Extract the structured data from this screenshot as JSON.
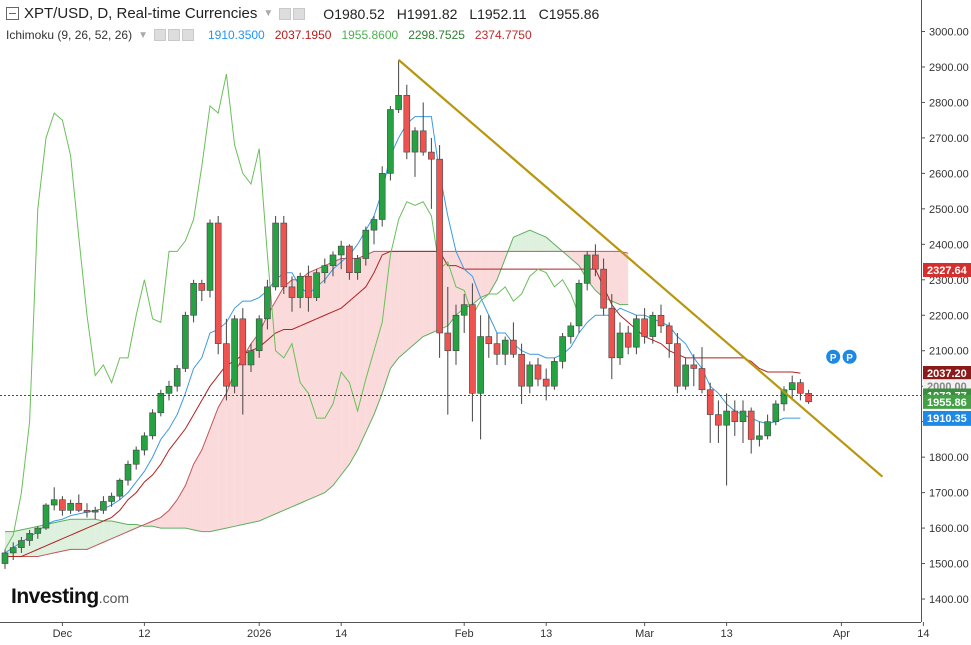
{
  "header": {
    "title": "XPT/USD, D, Real-time Currencies",
    "open_label": "O",
    "open": "1980.52",
    "high_label": "H",
    "high": "1991.82",
    "low_label": "L",
    "low": "1952.11",
    "close_label": "C",
    "close": "1955.86"
  },
  "indicator": {
    "label": "Ichimoku (9, 26, 52, 26)",
    "values": [
      "1910.3500",
      "2037.1950",
      "1955.8600",
      "2298.7525",
      "2374.7750"
    ],
    "colors": [
      "#2196f3",
      "#b71c1c",
      "#4caf50",
      "#2e7d32",
      "#c62828"
    ]
  },
  "brand": {
    "name": "Investing",
    "suffix": ".com"
  },
  "colors": {
    "up": "#26a242",
    "down": "#ef5350",
    "tenkan": "#3d9ae0",
    "kijun": "#b22222",
    "chikou": "#6abf5a",
    "trendline": "#b8960f",
    "cloud_bull": "#d8efd8",
    "cloud_bear": "#f9d3d3"
  },
  "chart_data": {
    "type": "candlestick",
    "symbol": "XPT/USD",
    "timeframe": "D",
    "ylim": [
      1380,
      3050
    ],
    "yticks": [
      "3000.00",
      "2900.00",
      "2800.00",
      "2700.00",
      "2600.00",
      "2500.00",
      "2400.00",
      "2300.00",
      "2200.00",
      "2100.00",
      "2000.00",
      "1900.00",
      "1800.00",
      "1700.00",
      "1600.00",
      "1500.00",
      "1400.00"
    ],
    "xticks": [
      {
        "label": "Dec",
        "i": 7
      },
      {
        "label": "12",
        "i": 17
      },
      {
        "label": "2026",
        "i": 31
      },
      {
        "label": "14",
        "i": 41
      },
      {
        "label": "Feb",
        "i": 56
      },
      {
        "label": "13",
        "i": 66
      },
      {
        "label": "Mar",
        "i": 78
      },
      {
        "label": "13",
        "i": 88
      },
      {
        "label": "Apr",
        "i": 102
      },
      {
        "label": "14",
        "i": 112
      }
    ],
    "candles": [
      [
        1500,
        1540,
        1485,
        1530
      ],
      [
        1530,
        1560,
        1510,
        1545
      ],
      [
        1545,
        1575,
        1530,
        1565
      ],
      [
        1565,
        1595,
        1550,
        1585
      ],
      [
        1585,
        1605,
        1570,
        1600
      ],
      [
        1600,
        1670,
        1595,
        1665
      ],
      [
        1665,
        1715,
        1650,
        1680
      ],
      [
        1680,
        1690,
        1635,
        1650
      ],
      [
        1650,
        1680,
        1640,
        1670
      ],
      [
        1670,
        1695,
        1645,
        1650
      ],
      [
        1650,
        1670,
        1630,
        1645
      ],
      [
        1645,
        1660,
        1625,
        1650
      ],
      [
        1650,
        1690,
        1640,
        1675
      ],
      [
        1675,
        1700,
        1660,
        1690
      ],
      [
        1690,
        1740,
        1680,
        1735
      ],
      [
        1735,
        1790,
        1720,
        1780
      ],
      [
        1780,
        1830,
        1765,
        1820
      ],
      [
        1820,
        1870,
        1805,
        1860
      ],
      [
        1860,
        1935,
        1850,
        1925
      ],
      [
        1925,
        1990,
        1915,
        1980
      ],
      [
        1980,
        2015,
        1960,
        2000
      ],
      [
        2000,
        2060,
        1985,
        2050
      ],
      [
        2050,
        2210,
        2040,
        2200
      ],
      [
        2200,
        2300,
        2180,
        2290
      ],
      [
        2290,
        2300,
        2240,
        2270
      ],
      [
        2270,
        2470,
        2250,
        2460
      ],
      [
        2460,
        2480,
        2090,
        2120
      ],
      [
        2120,
        2190,
        1960,
        2000
      ],
      [
        2000,
        2200,
        1980,
        2190
      ],
      [
        2190,
        2220,
        1920,
        2060
      ],
      [
        2060,
        2120,
        2040,
        2100
      ],
      [
        2100,
        2200,
        2080,
        2190
      ],
      [
        2190,
        2300,
        2160,
        2280
      ],
      [
        2280,
        2480,
        2270,
        2460
      ],
      [
        2460,
        2480,
        2260,
        2280
      ],
      [
        2280,
        2310,
        2210,
        2250
      ],
      [
        2250,
        2320,
        2220,
        2310
      ],
      [
        2310,
        2340,
        2210,
        2250
      ],
      [
        2250,
        2330,
        2240,
        2320
      ],
      [
        2320,
        2360,
        2290,
        2340
      ],
      [
        2340,
        2380,
        2310,
        2370
      ],
      [
        2370,
        2410,
        2330,
        2395
      ],
      [
        2395,
        2400,
        2300,
        2320
      ],
      [
        2320,
        2370,
        2300,
        2360
      ],
      [
        2360,
        2450,
        2340,
        2440
      ],
      [
        2440,
        2480,
        2400,
        2470
      ],
      [
        2470,
        2620,
        2450,
        2600
      ],
      [
        2600,
        2790,
        2580,
        2780
      ],
      [
        2780,
        2920,
        2770,
        2820
      ],
      [
        2820,
        2850,
        2640,
        2660
      ],
      [
        2660,
        2730,
        2590,
        2720
      ],
      [
        2720,
        2800,
        2650,
        2660
      ],
      [
        2660,
        2700,
        2500,
        2640
      ],
      [
        2640,
        2680,
        2080,
        2150
      ],
      [
        2150,
        2280,
        1920,
        2100
      ],
      [
        2100,
        2230,
        2060,
        2200
      ],
      [
        2200,
        2260,
        2150,
        2230
      ],
      [
        2230,
        2290,
        1900,
        1980
      ],
      [
        1980,
        2200,
        1850,
        2140
      ],
      [
        2140,
        2200,
        2080,
        2120
      ],
      [
        2120,
        2150,
        2060,
        2090
      ],
      [
        2090,
        2140,
        2060,
        2130
      ],
      [
        2130,
        2180,
        2080,
        2090
      ],
      [
        2090,
        2120,
        1950,
        2000
      ],
      [
        2000,
        2070,
        1980,
        2060
      ],
      [
        2060,
        2080,
        2000,
        2020
      ],
      [
        2020,
        2050,
        1960,
        2000
      ],
      [
        2000,
        2080,
        1990,
        2070
      ],
      [
        2070,
        2150,
        2050,
        2140
      ],
      [
        2140,
        2180,
        2120,
        2170
      ],
      [
        2170,
        2300,
        2150,
        2290
      ],
      [
        2290,
        2380,
        2270,
        2370
      ],
      [
        2370,
        2400,
        2310,
        2330
      ],
      [
        2330,
        2360,
        2200,
        2220
      ],
      [
        2220,
        2260,
        2020,
        2080
      ],
      [
        2080,
        2180,
        2060,
        2150
      ],
      [
        2150,
        2170,
        2090,
        2110
      ],
      [
        2110,
        2200,
        2090,
        2190
      ],
      [
        2190,
        2220,
        2120,
        2140
      ],
      [
        2140,
        2210,
        2120,
        2200
      ],
      [
        2200,
        2230,
        2150,
        2170
      ],
      [
        2170,
        2180,
        2080,
        2120
      ],
      [
        2120,
        2150,
        1980,
        2000
      ],
      [
        2000,
        2080,
        1990,
        2060
      ],
      [
        2060,
        2090,
        2000,
        2050
      ],
      [
        2050,
        2110,
        1980,
        1990
      ],
      [
        1990,
        2010,
        1840,
        1920
      ],
      [
        1920,
        1960,
        1840,
        1890
      ],
      [
        1890,
        1980,
        1720,
        1930
      ],
      [
        1930,
        1960,
        1860,
        1900
      ],
      [
        1900,
        1960,
        1840,
        1930
      ],
      [
        1930,
        1940,
        1810,
        1850
      ],
      [
        1850,
        1900,
        1830,
        1860
      ],
      [
        1860,
        1920,
        1850,
        1900
      ],
      [
        1900,
        1960,
        1890,
        1950
      ],
      [
        1950,
        2000,
        1930,
        1990
      ],
      [
        1990,
        2030,
        1960,
        2010
      ],
      [
        2010,
        2020,
        1960,
        1980
      ],
      [
        1980,
        1990,
        1950,
        1956
      ]
    ],
    "tenkan": [
      1530,
      1545,
      1560,
      1575,
      1590,
      1610,
      1620,
      1625,
      1635,
      1640,
      1645,
      1650,
      1655,
      1665,
      1680,
      1700,
      1730,
      1760,
      1800,
      1850,
      1880,
      1920,
      1980,
      2050,
      2080,
      2150,
      2160,
      2180,
      2220,
      2240,
      2240,
      2250,
      2270,
      2300,
      2320,
      2320,
      2280,
      2260,
      2280,
      2300,
      2330,
      2350,
      2370,
      2400,
      2440,
      2480,
      2550,
      2650,
      2700,
      2740,
      2760,
      2760,
      2760,
      2600,
      2480,
      2380,
      2330,
      2310,
      2250,
      2200,
      2150,
      2150,
      2120,
      2100,
      2090,
      2090,
      2080,
      2080,
      2090,
      2110,
      2150,
      2180,
      2200,
      2200,
      2200,
      2220,
      2210,
      2200,
      2200,
      2190,
      2180,
      2170,
      2140,
      2120,
      2080,
      2050,
      2000,
      1980,
      1950,
      1930,
      1920,
      1910,
      1900,
      1895,
      1900,
      1910,
      1910,
      1910
    ],
    "kijun": [
      1520,
      1520,
      1520,
      1530,
      1540,
      1550,
      1560,
      1570,
      1580,
      1590,
      1600,
      1610,
      1620,
      1630,
      1650,
      1680,
      1700,
      1730,
      1750,
      1780,
      1820,
      1850,
      1880,
      1920,
      1960,
      2000,
      2030,
      2060,
      2070,
      2090,
      2100,
      2110,
      2130,
      2150,
      2160,
      2160,
      2170,
      2180,
      2190,
      2200,
      2210,
      2220,
      2240,
      2260,
      2280,
      2320,
      2370,
      2380,
      2380,
      2380,
      2380,
      2380,
      2380,
      2380,
      2340,
      2340,
      2330,
      2330,
      2330,
      2330,
      2330,
      2330,
      2330,
      2330,
      2330,
      2330,
      2330,
      2330,
      2330,
      2330,
      2330,
      2330,
      2330,
      2280,
      2230,
      2200,
      2180,
      2160,
      2140,
      2130,
      2120,
      2100,
      2090,
      2080,
      2080,
      2080,
      2080,
      2080,
      2080,
      2080,
      2080,
      2070,
      2050,
      2040,
      2040,
      2040,
      2040,
      2037
    ],
    "senkouA": [
      1590,
      1590,
      1595,
      1600,
      1605,
      1610,
      1615,
      1620,
      1625,
      1625,
      1625,
      1625,
      1620,
      1620,
      1615,
      1610,
      1610,
      1605,
      1605,
      1600,
      1600,
      1600,
      1600,
      1595,
      1590,
      1590,
      1595,
      1600,
      1605,
      1610,
      1615,
      1620,
      1630,
      1640,
      1650,
      1660,
      1670,
      1680,
      1690,
      1700,
      1720,
      1750,
      1780,
      1820,
      1870,
      1920,
      1980,
      2050,
      2080,
      2100,
      2120,
      2140,
      2150,
      2160,
      2170,
      2200,
      2220,
      2230,
      2250,
      2260,
      2300,
      2360,
      2420,
      2430,
      2440,
      2430,
      2420,
      2400,
      2380,
      2360,
      2340,
      2300,
      2270,
      2250,
      2240,
      2230,
      2230
    ],
    "senkouB": [
      1520,
      1520,
      1520,
      1520,
      1520,
      1525,
      1530,
      1535,
      1540,
      1540,
      1540,
      1550,
      1560,
      1570,
      1580,
      1590,
      1600,
      1610,
      1620,
      1630,
      1650,
      1680,
      1720,
      1780,
      1820,
      1880,
      1940,
      1980,
      2040,
      2080,
      2120,
      2150,
      2200,
      2240,
      2280,
      2300,
      2300,
      2320,
      2330,
      2340,
      2350,
      2360,
      2360,
      2360,
      2370,
      2380,
      2380,
      2380,
      2380,
      2380,
      2380,
      2380,
      2380,
      2380,
      2380,
      2380,
      2380,
      2380,
      2380,
      2380,
      2380,
      2380,
      2380,
      2380,
      2380,
      2380,
      2380,
      2380,
      2380,
      2380,
      2380,
      2380,
      2380,
      2380,
      2380,
      2380,
      2375
    ],
    "chikou": [
      1540,
      1580,
      1700,
      1900,
      2500,
      2700,
      2770,
      2750,
      2650,
      2420,
      2200,
      2030,
      2060,
      2010,
      2080,
      2080,
      2200,
      2300,
      2190,
      2180,
      2380,
      2380,
      2410,
      2470,
      2620,
      2790,
      2770,
      2880,
      2680,
      2600,
      2570,
      2670,
      2370,
      2100,
      2080,
      2120,
      2010,
      1980,
      1910,
      1910,
      1950,
      2040,
      2010,
      1930,
      2020,
      2100,
      2180,
      2370,
      2470,
      2520,
      2510,
      2520,
      2480,
      2330,
      2350,
      2280,
      2270,
      2200,
      2240,
      2260,
      2260,
      2280,
      2240,
      2260,
      2310,
      2330,
      2320,
      2280,
      2300,
      2260,
      2200
    ],
    "trendline": {
      "from": {
        "i": 48,
        "y": 2920
      },
      "to": {
        "i": 107,
        "y": 1745
      }
    },
    "hlines": [
      {
        "y": 1973.77,
        "style": "dotted"
      }
    ],
    "price_labels": [
      {
        "value": "2327.64",
        "bg": "#d32f2f"
      },
      {
        "value": "2037.20",
        "bg": "#8b1a1a"
      },
      {
        "value": "2000.00",
        "bg": "#f2f2f2",
        "fg": "#888888"
      },
      {
        "value": "1973.77",
        "bg": "#388e3c"
      },
      {
        "value": "1955.86",
        "bg": "#43a047"
      },
      {
        "value": "1955.86",
        "bg": "#1e88e5"
      },
      {
        "value": "1910.35",
        "bg": "#1e88e5"
      }
    ],
    "markers": [
      {
        "label": "P",
        "i": 101
      },
      {
        "label": "P",
        "i": 103
      }
    ]
  }
}
